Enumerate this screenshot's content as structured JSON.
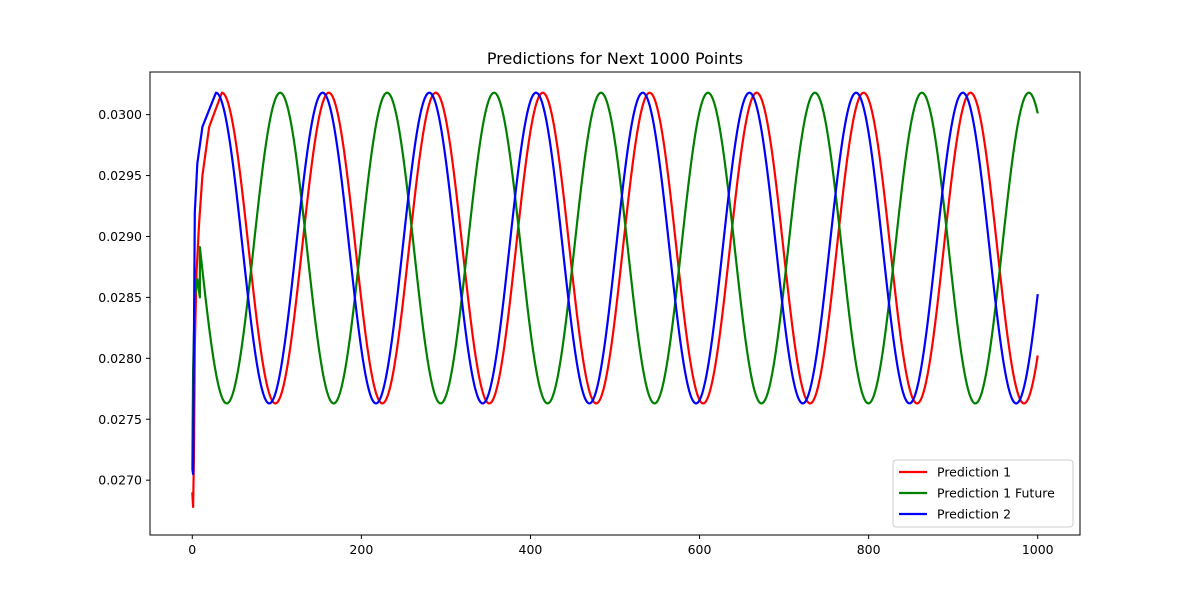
{
  "chart_data": {
    "type": "line",
    "title": "Predictions for Next 1000 Points",
    "xlabel": "",
    "ylabel": "",
    "xlim": [
      -50,
      1050
    ],
    "ylim": [
      0.02655,
      0.03035
    ],
    "x_ticks": [
      0,
      200,
      400,
      600,
      800,
      1000
    ],
    "x_tick_labels": [
      "0",
      "200",
      "400",
      "600",
      "800",
      "1000"
    ],
    "y_ticks": [
      0.027,
      0.0275,
      0.028,
      0.0285,
      0.029,
      0.0295,
      0.03
    ],
    "y_tick_labels": [
      "0.0270",
      "0.0275",
      "0.0280",
      "0.0285",
      "0.0290",
      "0.0295",
      "0.0300"
    ],
    "grid": false,
    "legend_position": "lower-right",
    "series": [
      {
        "name": "Prediction 1",
        "color": "#ff0000",
        "initial": [
          [
            0,
            0.0269
          ],
          [
            1,
            0.02678
          ],
          [
            2,
            0.0272
          ],
          [
            3,
            0.0281
          ],
          [
            5,
            0.0287
          ],
          [
            8,
            0.0291
          ],
          [
            12,
            0.0295
          ],
          [
            20,
            0.0299
          ],
          [
            35,
            0.03018
          ]
        ],
        "periodic": {
          "start_x": 35,
          "end_x": 1000,
          "peak_x": 35,
          "period": 126.5,
          "max": 0.03018,
          "min": 0.02763
        }
      },
      {
        "name": "Prediction 1 Future",
        "color": "#008000",
        "initial": [
          [
            0,
            0.0271
          ],
          [
            1,
            0.0279
          ],
          [
            3,
            0.0285
          ],
          [
            6,
            0.02865
          ],
          [
            9,
            0.0285
          ]
        ],
        "periodic": {
          "start_x": 9,
          "end_x": 1000,
          "peak_x": 104,
          "period": 126.5,
          "max": 0.03018,
          "min": 0.02763
        }
      },
      {
        "name": "Prediction 2",
        "color": "#0000ff",
        "initial": [
          [
            0,
            0.0271
          ],
          [
            1,
            0.02705
          ],
          [
            2,
            0.0282
          ],
          [
            3,
            0.0292
          ],
          [
            6,
            0.0296
          ],
          [
            12,
            0.0299
          ],
          [
            28,
            0.03018
          ]
        ],
        "periodic": {
          "start_x": 28,
          "end_x": 1000,
          "peak_x": 28,
          "period": 126.2,
          "max": 0.03018,
          "min": 0.02763
        }
      }
    ]
  }
}
